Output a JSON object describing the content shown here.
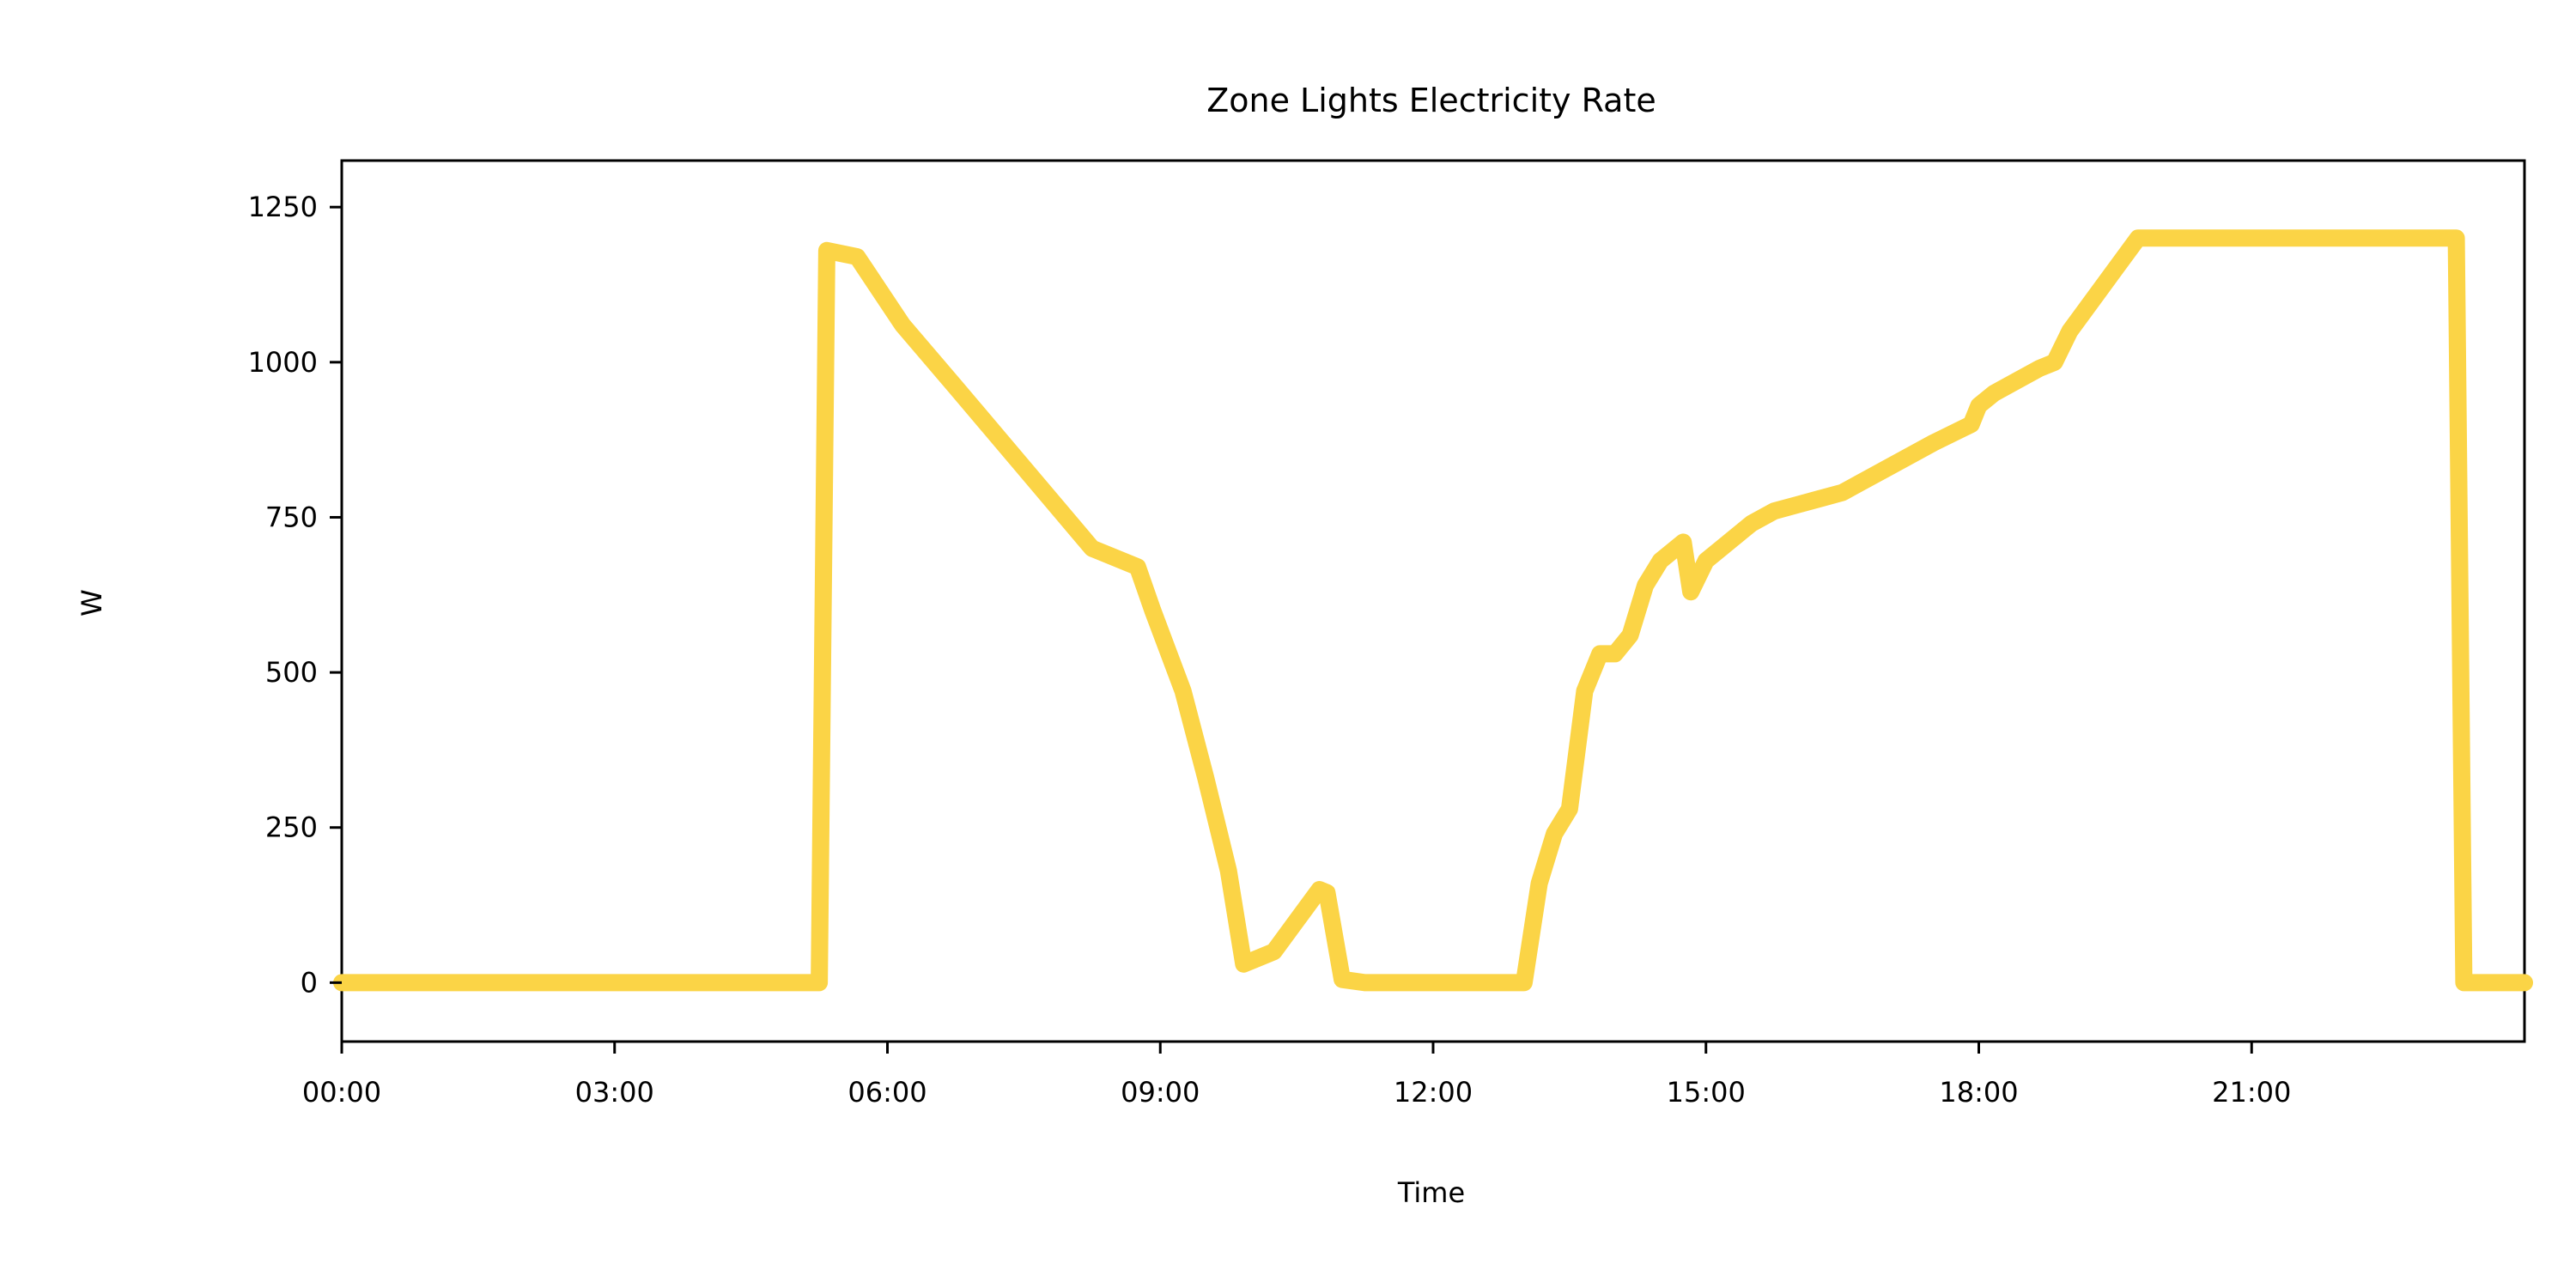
{
  "chart_data": {
    "type": "line",
    "title": "Zone Lights Electricity Rate",
    "xlabel": "Time",
    "ylabel": "W",
    "xlim": [
      "00:00",
      "24:00"
    ],
    "ylim": [
      -95,
      1325
    ],
    "x_ticks": [
      "00:00",
      "03:00",
      "06:00",
      "09:00",
      "12:00",
      "15:00",
      "18:00",
      "21:00"
    ],
    "y_ticks": [
      0,
      250,
      500,
      750,
      1000,
      1250
    ],
    "grid": false,
    "legend": "none",
    "series": [
      {
        "color": "#fbd446",
        "x": [
          "00:00",
          "05:15",
          "05:20",
          "05:40",
          "06:10",
          "06:45",
          "07:30",
          "08:15",
          "08:45",
          "08:55",
          "09:15",
          "09:30",
          "09:45",
          "09:55",
          "10:00",
          "10:15",
          "10:30",
          "10:45",
          "10:50",
          "11:00",
          "11:15",
          "12:00",
          "12:50",
          "13:00",
          "13:10",
          "13:20",
          "13:30",
          "13:40",
          "13:50",
          "14:00",
          "14:10",
          "14:20",
          "14:30",
          "14:45",
          "14:50",
          "15:00",
          "15:10",
          "15:20",
          "15:30",
          "15:45",
          "16:00",
          "16:15",
          "16:30",
          "16:45",
          "17:00",
          "17:30",
          "17:55",
          "18:00",
          "18:10",
          "18:25",
          "18:40",
          "18:50",
          "19:00",
          "19:15",
          "19:30",
          "19:45",
          "20:00",
          "20:30",
          "21:00",
          "21:30",
          "22:00",
          "22:30",
          "23:00",
          "23:15",
          "23:20",
          "23:30",
          "24:00"
        ],
        "y": [
          0,
          0,
          1180,
          1170,
          1060,
          960,
          830,
          700,
          670,
          600,
          470,
          330,
          180,
          30,
          35,
          50,
          100,
          150,
          145,
          5,
          0,
          0,
          0,
          0,
          160,
          240,
          280,
          470,
          530,
          530,
          560,
          640,
          680,
          710,
          630,
          680,
          700,
          720,
          740,
          760,
          770,
          780,
          790,
          810,
          830,
          870,
          900,
          930,
          950,
          970,
          990,
          1000,
          1050,
          1100,
          1150,
          1200,
          1200,
          1200,
          1200,
          1200,
          1200,
          1200,
          1200,
          1200,
          0,
          0,
          0
        ]
      }
    ]
  }
}
